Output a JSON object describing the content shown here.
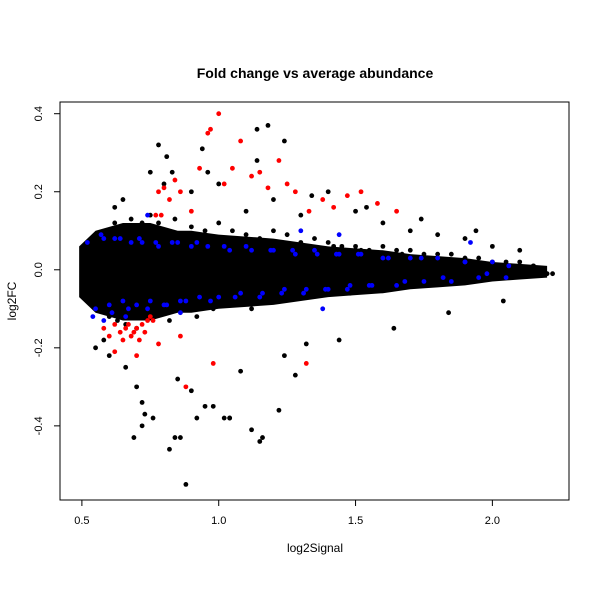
{
  "chart_data": {
    "type": "scatter",
    "title": "Fold change vs average abundance",
    "xlabel": "log2Signal",
    "ylabel": "log2FC",
    "xlim": [
      0.42,
      2.28
    ],
    "ylim": [
      -0.59,
      0.43
    ],
    "x_ticks": [
      {
        "value": 0.5,
        "label": "0.5"
      },
      {
        "value": 1.0,
        "label": "1.0"
      },
      {
        "value": 1.5,
        "label": "1.5"
      },
      {
        "value": 2.0,
        "label": "2.0"
      }
    ],
    "y_ticks": [
      {
        "value": -0.4,
        "label": "-0.4"
      },
      {
        "value": -0.2,
        "label": "-0.2"
      },
      {
        "value": 0.0,
        "label": "0.0"
      },
      {
        "value": 0.2,
        "label": "0.2"
      },
      {
        "value": 0.4,
        "label": "0.4"
      }
    ],
    "grid": false,
    "legend": "none",
    "series": [
      {
        "color": "#000000",
        "x": [
          0.5,
          0.52,
          0.54,
          0.55,
          0.57,
          0.58,
          0.6,
          0.6,
          0.62,
          0.63,
          0.65,
          0.66,
          0.68,
          0.7,
          0.7,
          0.72,
          0.74,
          0.75,
          0.76,
          0.78,
          0.8,
          0.82,
          0.84,
          0.85,
          0.87,
          0.9,
          0.92,
          0.95,
          0.98,
          1.0,
          1.02,
          1.05,
          1.08,
          1.1,
          1.12,
          1.15,
          1.18,
          1.2,
          1.22,
          1.25,
          1.28,
          1.3,
          1.33,
          1.35,
          1.38,
          1.4,
          1.43,
          1.45,
          1.48,
          1.5,
          1.53,
          1.55,
          1.58,
          1.6,
          1.63,
          1.65,
          1.68,
          1.7,
          1.73,
          1.75,
          1.78,
          1.8,
          1.83,
          1.85,
          1.88,
          1.9,
          1.93,
          1.95,
          1.98,
          2.0,
          2.03,
          2.05,
          2.08,
          2.1,
          2.13,
          2.15,
          2.18,
          2.2,
          2.22,
          0.55,
          0.6,
          0.65,
          0.7,
          0.75,
          0.8,
          0.85,
          0.9,
          0.95,
          1.0,
          1.1,
          1.2,
          1.3,
          1.4,
          1.5,
          1.6,
          1.7,
          1.8,
          1.9,
          2.0,
          2.1,
          0.58,
          0.62,
          0.66,
          0.72,
          0.78,
          0.84,
          0.9,
          0.96,
          1.04,
          1.14,
          1.24,
          1.34,
          1.44,
          1.54,
          1.64,
          1.74,
          1.84,
          1.94,
          2.04,
          0.72,
          0.76,
          0.82,
          0.86,
          0.92,
          0.98,
          1.02,
          1.08,
          1.12,
          1.16,
          1.22,
          1.28,
          0.69,
          0.73,
          0.81,
          0.83,
          0.88,
          0.94,
          1.04,
          1.14,
          1.15,
          1.18,
          1.24,
          1.32,
          0.5,
          0.53,
          0.56,
          0.59,
          0.63,
          0.67,
          0.71,
          0.75,
          0.79,
          0.83,
          0.87,
          0.91,
          0.95,
          0.99,
          1.03,
          1.07,
          1.11,
          1.16,
          1.21,
          1.26,
          1.31,
          1.36,
          1.41,
          1.46,
          1.51,
          1.56,
          1.61,
          1.66,
          1.71,
          1.76,
          1.81,
          1.86,
          1.91,
          1.96,
          2.01,
          2.06,
          2.11,
          2.16,
          1.36,
          1.42,
          1.47,
          1.52,
          1.57,
          1.62,
          1.67,
          1.72,
          1.77,
          1.82,
          1.87,
          1.92,
          1.97,
          2.02,
          1.33,
          1.38,
          1.44,
          1.48,
          1.53,
          1.58,
          1.63,
          1.68,
          1.73,
          1.78
        ],
        "y": [
          0.05,
          -0.06,
          0.07,
          -0.08,
          0.09,
          -0.1,
          0.1,
          -0.12,
          0.12,
          -0.13,
          0.11,
          -0.14,
          0.13,
          0.1,
          -0.15,
          0.12,
          -0.12,
          0.14,
          -0.11,
          0.12,
          0.1,
          -0.13,
          0.13,
          -0.1,
          0.09,
          0.11,
          -0.12,
          0.1,
          -0.1,
          0.12,
          -0.09,
          0.1,
          -0.08,
          0.09,
          -0.1,
          0.08,
          -0.07,
          0.1,
          -0.08,
          0.09,
          -0.06,
          0.07,
          -0.07,
          0.08,
          -0.06,
          0.07,
          -0.05,
          0.06,
          -0.06,
          0.06,
          -0.05,
          0.05,
          -0.05,
          0.06,
          -0.04,
          0.05,
          -0.04,
          0.05,
          -0.04,
          0.04,
          -0.03,
          0.04,
          -0.03,
          0.04,
          -0.03,
          0.03,
          -0.02,
          0.03,
          -0.02,
          0.02,
          -0.02,
          0.02,
          -0.01,
          0.02,
          -0.01,
          0.01,
          -0.01,
          -0.01,
          -0.01,
          -0.2,
          -0.22,
          0.18,
          -0.3,
          0.25,
          0.22,
          -0.28,
          0.2,
          -0.35,
          0.22,
          0.15,
          0.18,
          0.14,
          0.2,
          0.15,
          0.12,
          0.1,
          0.09,
          0.08,
          0.06,
          0.05,
          -0.18,
          0.16,
          -0.25,
          -0.34,
          0.32,
          -0.43,
          -0.31,
          0.25,
          -0.38,
          0.28,
          -0.22,
          0.19,
          -0.18,
          0.16,
          -0.15,
          0.13,
          -0.11,
          0.1,
          -0.08,
          -0.4,
          -0.38,
          -0.46,
          -0.43,
          -0.38,
          -0.35,
          -0.38,
          -0.26,
          -0.41,
          -0.43,
          -0.36,
          -0.27,
          -0.43,
          -0.37,
          0.29,
          0.25,
          -0.55,
          0.31,
          -0.38,
          0.36,
          -0.44,
          0.37,
          0.33,
          -0.19,
          0.0,
          0.01,
          -0.01,
          0.0,
          0.01,
          -0.02,
          0.0,
          0.01,
          -0.01,
          0.0,
          0.0,
          0.01,
          -0.01,
          0.0,
          0.01,
          0.0,
          -0.01,
          0.0,
          0.01,
          0.0,
          -0.01,
          0.0,
          0.0,
          0.01,
          -0.01,
          0.0,
          0.0,
          -0.01,
          0.0,
          0.0,
          0.01,
          0.0,
          -0.01,
          0.0,
          0.0,
          0.0,
          0.0,
          0.0,
          0.05,
          0.06,
          0.04,
          0.05,
          0.04,
          0.03,
          0.04,
          0.03,
          0.02,
          0.02,
          0.01,
          0.01,
          0.0,
          -0.01,
          -0.07,
          -0.06,
          -0.05,
          -0.06,
          -0.05,
          -0.04,
          -0.03,
          -0.03,
          -0.02,
          -0.02
        ]
      },
      {
        "color": "#0000ff",
        "x": [
          0.52,
          0.55,
          0.58,
          0.6,
          0.62,
          0.65,
          0.68,
          0.7,
          0.72,
          0.75,
          0.78,
          0.8,
          0.83,
          0.86,
          0.9,
          0.93,
          0.96,
          1.0,
          1.04,
          1.08,
          1.12,
          1.16,
          1.2,
          1.24,
          1.28,
          1.32,
          1.36,
          1.4,
          1.44,
          1.48,
          1.52,
          1.56,
          1.6,
          1.65,
          1.7,
          1.75,
          1.8,
          1.85,
          1.9,
          1.95,
          2.0,
          2.05,
          0.54,
          0.57,
          0.61,
          0.64,
          0.67,
          0.71,
          0.74,
          0.77,
          0.81,
          0.85,
          0.88,
          0.92,
          0.97,
          1.02,
          1.06,
          1.1,
          1.15,
          1.19,
          1.23,
          1.27,
          1.31,
          1.35,
          1.39,
          1.43,
          1.47,
          1.51,
          1.55,
          1.62,
          1.68,
          1.74,
          1.82,
          1.9,
          1.98,
          2.06,
          0.58,
          0.66,
          0.74,
          0.86,
          1.3,
          1.38,
          1.44,
          1.92
        ],
        "y": [
          0.07,
          -0.1,
          0.08,
          -0.09,
          0.08,
          -0.08,
          0.07,
          -0.09,
          0.07,
          -0.08,
          0.06,
          -0.09,
          0.07,
          -0.08,
          0.06,
          -0.07,
          0.06,
          -0.07,
          0.05,
          -0.06,
          0.05,
          -0.06,
          0.05,
          -0.05,
          0.04,
          -0.05,
          0.04,
          -0.05,
          0.04,
          -0.04,
          0.04,
          -0.04,
          0.03,
          -0.04,
          0.03,
          -0.03,
          0.03,
          -0.03,
          0.02,
          -0.02,
          0.02,
          -0.02,
          -0.12,
          0.09,
          -0.11,
          0.08,
          -0.1,
          0.08,
          -0.1,
          0.07,
          -0.09,
          0.07,
          -0.08,
          0.07,
          -0.08,
          0.06,
          -0.07,
          0.06,
          -0.07,
          0.05,
          -0.06,
          0.05,
          -0.06,
          0.05,
          -0.05,
          0.04,
          -0.05,
          0.04,
          -0.04,
          0.03,
          -0.03,
          0.03,
          -0.02,
          0.02,
          -0.01,
          0.01,
          -0.13,
          -0.12,
          0.14,
          -0.11,
          0.1,
          -0.1,
          0.09,
          0.07
        ]
      },
      {
        "color": "#ff0000",
        "x": [
          0.58,
          0.6,
          0.62,
          0.64,
          0.65,
          0.66,
          0.67,
          0.68,
          0.69,
          0.7,
          0.71,
          0.72,
          0.73,
          0.74,
          0.75,
          0.76,
          0.77,
          0.78,
          0.79,
          0.8,
          0.82,
          0.84,
          0.86,
          0.88,
          0.9,
          0.93,
          0.96,
          0.97,
          1.0,
          1.02,
          1.05,
          1.08,
          1.12,
          1.15,
          1.18,
          1.22,
          1.25,
          1.28,
          1.33,
          1.38,
          1.42,
          1.47,
          1.52,
          1.58,
          1.65,
          0.62,
          0.7,
          0.78,
          0.86,
          0.98,
          1.32
        ],
        "y": [
          -0.15,
          -0.17,
          -0.14,
          -0.16,
          -0.18,
          -0.15,
          -0.14,
          -0.17,
          -0.16,
          -0.15,
          -0.18,
          -0.14,
          -0.16,
          -0.13,
          -0.12,
          -0.13,
          0.14,
          0.2,
          0.14,
          0.21,
          0.18,
          0.23,
          0.2,
          -0.3,
          0.15,
          0.26,
          0.35,
          0.36,
          0.4,
          0.22,
          0.26,
          0.33,
          0.24,
          0.25,
          0.21,
          0.28,
          0.22,
          0.2,
          0.15,
          0.18,
          0.16,
          0.19,
          0.2,
          0.17,
          0.15,
          -0.21,
          -0.22,
          -0.19,
          -0.17,
          -0.24,
          -0.24
        ]
      }
    ]
  }
}
